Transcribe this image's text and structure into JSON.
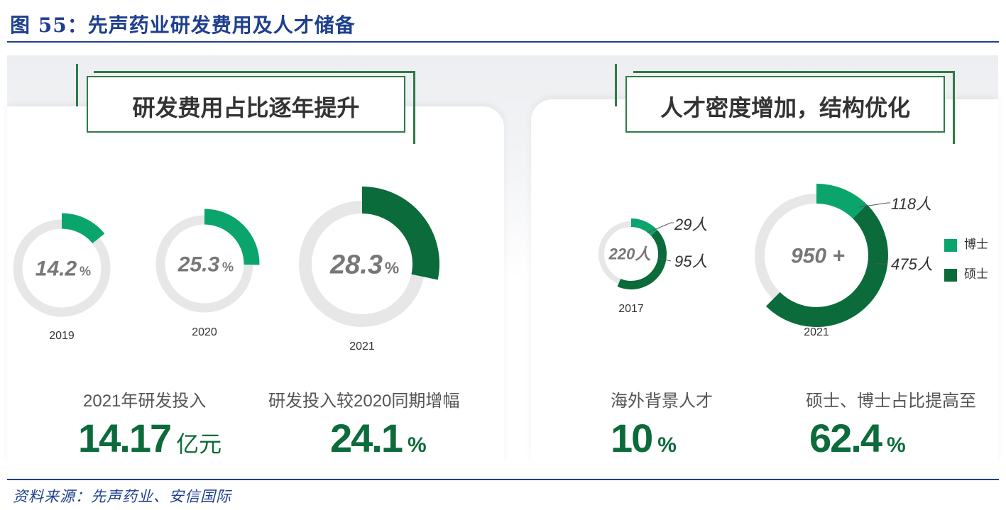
{
  "figure_title": "图 55：先声药业研发费用及人才储备",
  "source": "资料来源：先声药业、安信国际",
  "left_panel": {
    "header": "研发费用占比逐年提升"
  },
  "right_panel": {
    "header": "人才密度增加，结构优化"
  },
  "kpis": {
    "rd_invest_label": "2021年研发投入",
    "rd_invest_value": "14.17",
    "rd_invest_unit": "亿元",
    "rd_growth_label": "研发投入较2020同期增幅",
    "rd_growth_value": "24.1",
    "rd_growth_unit": "%",
    "overseas_label": "海外背景人才",
    "overseas_value": "10",
    "overseas_unit": "%",
    "advanced_label": "硕士、博士占比提高至",
    "advanced_value": "62.4",
    "advanced_unit": "%"
  },
  "legend": {
    "phd": "博士",
    "master": "硕士"
  },
  "colors": {
    "light_green": "#0aa56c",
    "dark_green": "#0b6b3a",
    "track": "#e6e7e6",
    "title_blue": "#1f3f8f"
  },
  "chart_data": [
    {
      "type": "pie",
      "subtype": "donut-progress",
      "panel": "left",
      "series": [
        {
          "year": "2019",
          "value": 14.2,
          "center_label": "14.2",
          "unit": "%"
        },
        {
          "year": "2020",
          "value": 25.3,
          "center_label": "25.3",
          "unit": "%"
        },
        {
          "year": "2021",
          "value": 28.3,
          "center_label": "28.3",
          "unit": "%"
        }
      ]
    },
    {
      "type": "pie",
      "subtype": "donut-composition",
      "panel": "right",
      "legend": [
        "博士",
        "硕士"
      ],
      "series": [
        {
          "year": "2017",
          "total": 220,
          "center_label": "220人",
          "phd": 29,
          "master": 95,
          "phd_label": "29人",
          "master_label": "95人"
        },
        {
          "year": "2021",
          "total": 950,
          "center_label": "950 +",
          "phd": 118,
          "master": 475,
          "phd_label": "118人",
          "master_label": "475人"
        }
      ]
    }
  ]
}
